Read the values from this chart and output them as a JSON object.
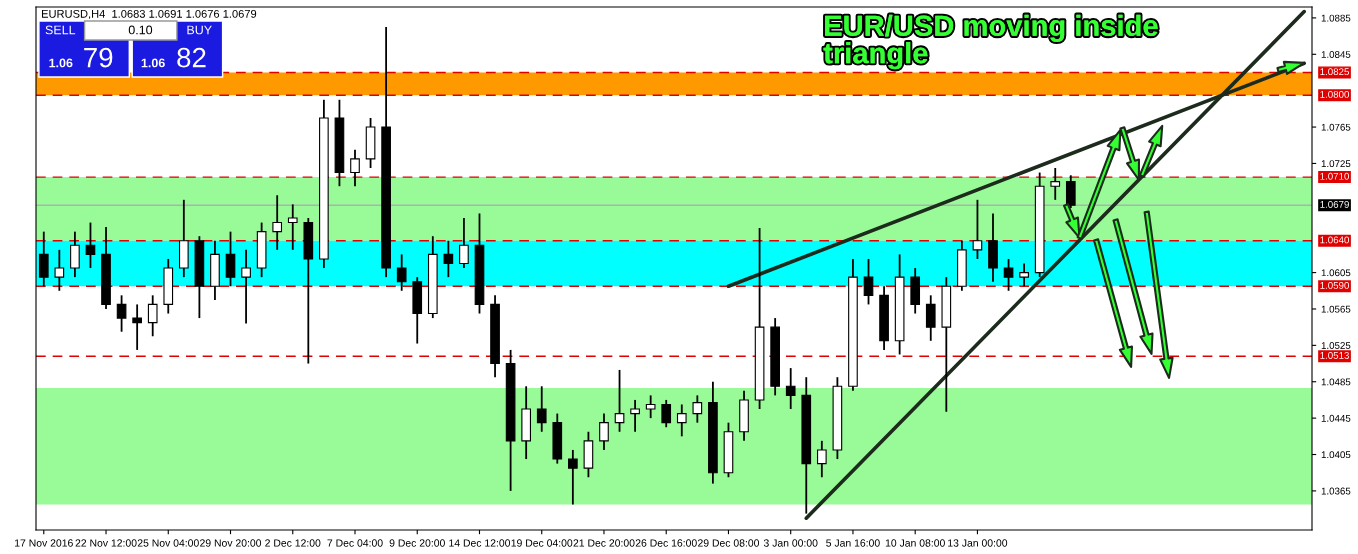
{
  "chart_data": {
    "type": "candlestick",
    "title": "EURUSD,H4  1.0683 1.0691 1.0676 1.0679",
    "annotations": [
      "EUR/USD moving inside\ntriangle",
      "SELL",
      "0.10",
      "BUY",
      "1.06",
      "79",
      "1.06",
      "82"
    ],
    "categories": [
      "17 Nov 2016",
      null,
      null,
      null,
      "22 Nov 12:00",
      null,
      null,
      null,
      "25 Nov 04:00",
      null,
      null,
      null,
      "29 Nov 20:00",
      null,
      null,
      null,
      "2 Dec 12:00",
      null,
      null,
      null,
      "7 Dec 04:00",
      null,
      null,
      null,
      "9 Dec 20:00",
      null,
      null,
      null,
      "14 Dec 12:00",
      null,
      null,
      null,
      "19 Dec 04:00",
      null,
      null,
      null,
      "21 Dec 20:00",
      null,
      null,
      null,
      "26 Dec 16:00",
      null,
      null,
      null,
      "29 Dec 08:00",
      null,
      null,
      null,
      "3 Jan 00:00",
      null,
      null,
      null,
      "5 Jan 16:00",
      null,
      null,
      null,
      "10 Jan 08:00",
      null,
      null,
      null,
      "13 Jan 00:00",
      null,
      null,
      null,
      null,
      null,
      null,
      null,
      null,
      null,
      null,
      null,
      null,
      null,
      null,
      null,
      null,
      null,
      null,
      null,
      null,
      null
    ],
    "ohlc": [
      [
        1.0625,
        1.065,
        1.059,
        1.06
      ],
      [
        1.06,
        1.063,
        1.0585,
        1.061
      ],
      [
        1.061,
        1.065,
        1.06,
        1.0635
      ],
      [
        1.0635,
        1.066,
        1.061,
        1.0625
      ],
      [
        1.0625,
        1.0655,
        1.0565,
        1.057
      ],
      [
        1.057,
        1.058,
        1.054,
        1.0555
      ],
      [
        1.0555,
        1.057,
        1.052,
        1.055
      ],
      [
        1.055,
        1.058,
        1.0535,
        1.057
      ],
      [
        1.057,
        1.062,
        1.056,
        1.061
      ],
      [
        1.061,
        1.0685,
        1.06,
        1.064
      ],
      [
        1.064,
        1.0645,
        1.0555,
        1.059
      ],
      [
        1.059,
        1.064,
        1.0575,
        1.0625
      ],
      [
        1.0625,
        1.065,
        1.059,
        1.06
      ],
      [
        1.06,
        1.063,
        1.0549,
        1.061
      ],
      [
        1.061,
        1.066,
        1.06,
        1.065
      ],
      [
        1.065,
        1.069,
        1.063,
        1.066
      ],
      [
        1.066,
        1.068,
        1.063,
        1.0665
      ],
      [
        1.066,
        1.0665,
        1.0505,
        1.062
      ],
      [
        1.062,
        1.0795,
        1.061,
        1.0775
      ],
      [
        1.0775,
        1.0795,
        1.07,
        1.0715
      ],
      [
        1.0715,
        1.074,
        1.07,
        1.073
      ],
      [
        1.073,
        1.0775,
        1.072,
        1.0765
      ],
      [
        1.0765,
        1.0875,
        1.06,
        1.061
      ],
      [
        1.061,
        1.0625,
        1.0585,
        1.0595
      ],
      [
        1.0595,
        1.06,
        1.0527,
        1.056
      ],
      [
        1.056,
        1.0645,
        1.0555,
        1.0625
      ],
      [
        1.0625,
        1.064,
        1.06,
        1.0615
      ],
      [
        1.0615,
        1.0665,
        1.061,
        1.0635
      ],
      [
        1.0635,
        1.067,
        1.056,
        1.057
      ],
      [
        1.057,
        1.058,
        1.049,
        1.0505
      ],
      [
        1.0505,
        1.052,
        1.0365,
        1.042
      ],
      [
        1.042,
        1.048,
        1.04,
        1.0455
      ],
      [
        1.0455,
        1.048,
        1.043,
        1.044
      ],
      [
        1.044,
        1.045,
        1.0395,
        1.04
      ],
      [
        1.04,
        1.041,
        1.035,
        1.039
      ],
      [
        1.039,
        1.043,
        1.038,
        1.042
      ],
      [
        1.042,
        1.045,
        1.041,
        1.044
      ],
      [
        1.044,
        1.0498,
        1.043,
        1.045
      ],
      [
        1.045,
        1.0465,
        1.043,
        1.0455
      ],
      [
        1.0455,
        1.047,
        1.0445,
        1.046
      ],
      [
        1.046,
        1.0465,
        1.0435,
        1.044
      ],
      [
        1.044,
        1.046,
        1.0425,
        1.045
      ],
      [
        1.045,
        1.047,
        1.044,
        1.0462
      ],
      [
        1.0462,
        1.0485,
        1.0373,
        1.0385
      ],
      [
        1.0385,
        1.044,
        1.038,
        1.043
      ],
      [
        1.043,
        1.0475,
        1.042,
        1.0465
      ],
      [
        1.0465,
        1.0654,
        1.0455,
        1.0545
      ],
      [
        1.0545,
        1.0555,
        1.047,
        1.048
      ],
      [
        1.048,
        1.05,
        1.0455,
        1.047
      ],
      [
        1.047,
        1.049,
        1.034,
        1.0395
      ],
      [
        1.0395,
        1.042,
        1.038,
        1.041
      ],
      [
        1.041,
        1.049,
        1.04,
        1.048
      ],
      [
        1.048,
        1.062,
        1.0475,
        1.06
      ],
      [
        1.06,
        1.062,
        1.057,
        1.058
      ],
      [
        1.058,
        1.059,
        1.052,
        1.053
      ],
      [
        1.053,
        1.0625,
        1.0515,
        1.06
      ],
      [
        1.06,
        1.061,
        1.056,
        1.057
      ],
      [
        1.057,
        1.058,
        1.053,
        1.0545
      ],
      [
        1.0545,
        1.06,
        1.0452,
        1.059
      ],
      [
        1.059,
        1.064,
        1.0585,
        1.063
      ],
      [
        1.063,
        1.0685,
        1.062,
        1.064
      ],
      [
        1.064,
        1.067,
        1.0595,
        1.061
      ],
      [
        1.061,
        1.062,
        1.0585,
        1.06
      ],
      [
        1.06,
        1.0615,
        1.059,
        1.0605
      ],
      [
        1.0605,
        1.0715,
        1.06,
        1.07
      ],
      [
        1.07,
        1.072,
        1.0685,
        1.0705
      ],
      [
        1.0705,
        1.0712,
        1.0676,
        1.0679
      ],
      null,
      null,
      null,
      null,
      null,
      null,
      null,
      null,
      null,
      null,
      null,
      null,
      null,
      null,
      null
    ],
    "series": [
      {
        "type": "line",
        "color": "#1c2b1c",
        "values": [
          null,
          null,
          null,
          null,
          null,
          null,
          null,
          null,
          null,
          null,
          null,
          null,
          null,
          null,
          null,
          null,
          null,
          null,
          null,
          null,
          null,
          null,
          null,
          null,
          null,
          null,
          null,
          null,
          null,
          null,
          null,
          null,
          null,
          null,
          null,
          null,
          null,
          null,
          null,
          null,
          null,
          null,
          null,
          null,
          1.059,
          null,
          null,
          null,
          null,
          null,
          null,
          null,
          null,
          null,
          null,
          null,
          null,
          null,
          null,
          null,
          null,
          null,
          null,
          null,
          null,
          null,
          null,
          null,
          null,
          null,
          null,
          null,
          null,
          null,
          null,
          null,
          null,
          null,
          null,
          null,
          null,
          1.0835
        ]
      },
      {
        "type": "line",
        "color": "#1c2b1c",
        "values": [
          null,
          null,
          null,
          null,
          null,
          null,
          null,
          null,
          null,
          null,
          null,
          null,
          null,
          null,
          null,
          null,
          null,
          null,
          null,
          null,
          null,
          null,
          null,
          null,
          null,
          null,
          null,
          null,
          null,
          null,
          null,
          null,
          null,
          null,
          null,
          null,
          null,
          null,
          null,
          null,
          null,
          null,
          null,
          null,
          null,
          null,
          null,
          null,
          null,
          1.0335,
          null,
          null,
          null,
          null,
          null,
          null,
          null,
          null,
          null,
          null,
          null,
          null,
          null,
          null,
          null,
          null,
          null,
          null,
          null,
          null,
          null,
          null,
          null,
          null,
          null,
          null,
          null,
          null,
          null,
          null,
          null,
          1.0892
        ]
      }
    ],
    "ref_lines": [
      {
        "axis": "y",
        "value": 1.0825,
        "label": "1.0825",
        "color": "#e00000",
        "line_style": "dashed"
      },
      {
        "axis": "y",
        "value": 1.08,
        "label": "1.0800",
        "color": "#e00000",
        "line_style": "dashed"
      },
      {
        "axis": "y",
        "value": 1.071,
        "label": "1.0710",
        "color": "#e00000",
        "line_style": "dashed"
      },
      {
        "axis": "y",
        "value": 1.0679,
        "label": "1.0679",
        "color": "#b0b0b0",
        "line_style": "solid"
      },
      {
        "axis": "y",
        "value": 1.064,
        "label": "1.0640",
        "color": "#e00000",
        "line_style": "dashed"
      },
      {
        "axis": "y",
        "value": 1.059,
        "label": "1.0590",
        "color": "#e00000",
        "line_style": "dashed"
      },
      {
        "axis": "y",
        "value": 1.0513,
        "label": "1.0513",
        "color": "#e00000",
        "line_style": "dashed"
      }
    ],
    "bands": [
      {
        "axis": "y",
        "from": 1.08,
        "to": 1.0825,
        "color": "#ff9900"
      },
      {
        "axis": "y",
        "from": 1.064,
        "to": 1.071,
        "color": "#98fb98"
      },
      {
        "axis": "y",
        "from": 1.059,
        "to": 1.064,
        "color": "#00ffff"
      },
      {
        "axis": "y",
        "from": 1.035,
        "to": 1.0478,
        "color": "#98fb98"
      }
    ],
    "ylim": [
      1.0322,
      1.0897
    ],
    "yticks": [
      1.0365,
      1.0405,
      1.0445,
      1.0485,
      1.0525,
      1.0565,
      1.0605,
      1.0725,
      1.0765,
      1.0845,
      1.0885
    ],
    "grid": false
  }
}
